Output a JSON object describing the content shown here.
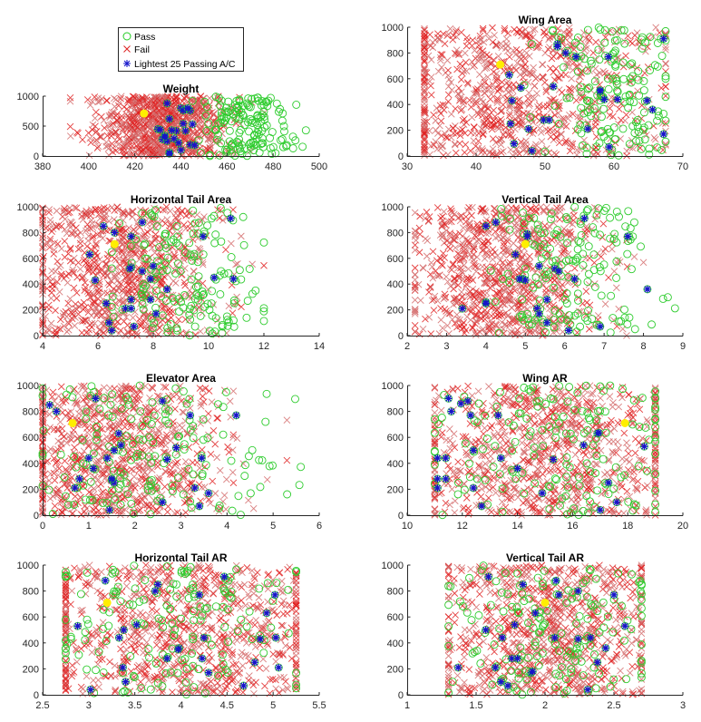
{
  "legend": {
    "entries": [
      {
        "label": "Pass",
        "marker": "circle",
        "color": "#22cc22"
      },
      {
        "label": "Fail",
        "marker": "x",
        "color": "#dd2222"
      },
      {
        "label": "Lightest 25 Passing A/C",
        "marker": "asterisk",
        "color": "#1a1acc"
      }
    ],
    "placement": "above top-left panel"
  },
  "colors": {
    "pass": "#2ecc2e",
    "fail": "#e02020",
    "fail_light": "#d46a6a",
    "star": "#1515c8",
    "highlight": "#ffee00",
    "axis": "#262626"
  },
  "chart_data": [
    {
      "type": "scatter",
      "title": "Weight",
      "xlabel": "",
      "ylabel": "",
      "xlim": [
        380,
        500
      ],
      "ylim": [
        0,
        1000
      ],
      "xticks": [
        "380",
        "400",
        "420",
        "440",
        "460",
        "480",
        "500"
      ],
      "yticks": [
        "0",
        "500",
        "1000"
      ],
      "grid": false,
      "fail_range": {
        "x": [
          392,
          492
        ],
        "center": 432,
        "spread": 14,
        "count": 900
      },
      "pass_range": {
        "x": [
          445,
          498
        ],
        "center": 468,
        "spread": 10,
        "count": 160
      },
      "stars": [
        [
          434,
          880
        ],
        [
          440,
          800
        ],
        [
          442,
          780
        ],
        [
          444,
          760
        ],
        [
          435,
          620
        ],
        [
          441,
          540
        ],
        [
          445,
          530
        ],
        [
          430,
          450
        ],
        [
          431,
          440
        ],
        [
          438,
          420
        ],
        [
          433,
          340
        ],
        [
          432,
          280
        ],
        [
          434,
          250
        ],
        [
          437,
          290
        ],
        [
          439,
          220
        ],
        [
          444,
          190
        ],
        [
          446,
          180
        ],
        [
          440,
          100
        ],
        [
          435,
          60
        ],
        [
          435,
          40
        ],
        [
          441,
          760
        ],
        [
          443,
          800
        ],
        [
          436,
          430
        ],
        [
          442,
          420
        ],
        [
          433,
          320
        ]
      ],
      "highlight": [
        424,
        710
      ]
    },
    {
      "type": "scatter",
      "title": "Wing Area",
      "xlim": [
        30,
        70
      ],
      "ylim": [
        0,
        1000
      ],
      "xticks": [
        "30",
        "40",
        "50",
        "60",
        "70"
      ],
      "yticks": [
        "0",
        "200",
        "400",
        "600",
        "800",
        "1000"
      ],
      "grid": false,
      "fail_range": {
        "x": [
          32.5,
          67.5
        ],
        "center": 46,
        "spread": 10,
        "count": 900
      },
      "pass_range": {
        "x": [
          47,
          67.5
        ],
        "center": 60,
        "spread": 5,
        "count": 160
      },
      "stars": [
        [
          51.8,
          870
        ],
        [
          51.8,
          850
        ],
        [
          53,
          800
        ],
        [
          54.5,
          770
        ],
        [
          59.2,
          770
        ],
        [
          67.2,
          910
        ],
        [
          44.8,
          630
        ],
        [
          46.5,
          530
        ],
        [
          51.2,
          540
        ],
        [
          45.2,
          430
        ],
        [
          58,
          500
        ],
        [
          58.6,
          440
        ],
        [
          60.5,
          440
        ],
        [
          64.8,
          430
        ],
        [
          65.6,
          360
        ],
        [
          45,
          250
        ],
        [
          47.6,
          210
        ],
        [
          49.8,
          280
        ],
        [
          50.6,
          280
        ],
        [
          56.2,
          210
        ],
        [
          67.2,
          170
        ],
        [
          45.5,
          95
        ],
        [
          48.1,
          40
        ],
        [
          59.3,
          70
        ],
        [
          58,
          510
        ]
      ],
      "highlight": [
        43.5,
        710
      ]
    },
    {
      "type": "scatter",
      "title": "Horizontal Tail Area",
      "xlim": [
        4,
        14
      ],
      "ylim": [
        0,
        1000
      ],
      "xticks": [
        "4",
        "6",
        "8",
        "10",
        "12",
        "14"
      ],
      "yticks": [
        "0",
        "200",
        "400",
        "600",
        "800",
        "1000"
      ],
      "grid": false,
      "fail_range": {
        "x": [
          4,
          12
        ],
        "center": 6.8,
        "spread": 1.7,
        "count": 900
      },
      "pass_range": {
        "x": [
          6.5,
          12
        ],
        "center": 9.3,
        "spread": 1.2,
        "count": 160
      },
      "stars": [
        [
          6.2,
          850
        ],
        [
          6.6,
          800
        ],
        [
          7.2,
          770
        ],
        [
          7.6,
          880
        ],
        [
          9.8,
          770
        ],
        [
          10.8,
          910
        ],
        [
          5.7,
          630
        ],
        [
          7.2,
          530
        ],
        [
          7.6,
          500
        ],
        [
          8.0,
          540
        ],
        [
          5.9,
          430
        ],
        [
          7.9,
          440
        ],
        [
          8.5,
          360
        ],
        [
          10.2,
          450
        ],
        [
          10.9,
          440
        ],
        [
          6.3,
          250
        ],
        [
          7.2,
          280
        ],
        [
          7.0,
          210
        ],
        [
          7.2,
          210
        ],
        [
          7.9,
          280
        ],
        [
          8.1,
          170
        ],
        [
          6.4,
          100
        ],
        [
          6.5,
          40
        ],
        [
          7.3,
          70
        ],
        [
          7.15,
          520
        ]
      ],
      "highlight": [
        6.6,
        710
      ]
    },
    {
      "type": "scatter",
      "title": "Vertical Tail Area",
      "xlim": [
        2,
        9
      ],
      "ylim": [
        0,
        1000
      ],
      "xticks": [
        "2",
        "3",
        "4",
        "5",
        "6",
        "7",
        "8",
        "9"
      ],
      "yticks": [
        "0",
        "200",
        "400",
        "600",
        "800",
        "1000"
      ],
      "grid": false,
      "fail_range": {
        "x": [
          2.2,
          8
        ],
        "center": 4.5,
        "spread": 1.2,
        "count": 900
      },
      "pass_range": {
        "x": [
          3.7,
          8.8
        ],
        "center": 6.2,
        "spread": 1.0,
        "count": 160
      },
      "stars": [
        [
          4.0,
          850
        ],
        [
          4.25,
          880
        ],
        [
          5.05,
          790
        ],
        [
          6.5,
          910
        ],
        [
          7.6,
          770
        ],
        [
          4.75,
          630
        ],
        [
          5.35,
          540
        ],
        [
          5.75,
          520
        ],
        [
          5.85,
          500
        ],
        [
          4.9,
          440
        ],
        [
          4.95,
          440
        ],
        [
          5.0,
          430
        ],
        [
          6.25,
          440
        ],
        [
          8.1,
          360
        ],
        [
          4.0,
          260
        ],
        [
          4.0,
          250
        ],
        [
          5.55,
          280
        ],
        [
          3.4,
          210
        ],
        [
          5.3,
          210
        ],
        [
          5.35,
          170
        ],
        [
          5.55,
          100
        ],
        [
          6.1,
          40
        ],
        [
          6.9,
          70
        ],
        [
          5.05,
          770
        ],
        [
          4.85,
          440
        ]
      ],
      "highlight": [
        5.0,
        710
      ]
    },
    {
      "type": "scatter",
      "title": "Elevator Area",
      "xlim": [
        0,
        6
      ],
      "ylim": [
        0,
        1000
      ],
      "xticks": [
        "0",
        "1",
        "2",
        "3",
        "4",
        "5",
        "6"
      ],
      "yticks": [
        "0",
        "200",
        "400",
        "600",
        "800",
        "1000"
      ],
      "grid": false,
      "fail_range": {
        "x": [
          0,
          5.3
        ],
        "center": 1.6,
        "spread": 1.2,
        "count": 900
      },
      "pass_range": {
        "x": [
          0,
          5.6
        ],
        "center": 2.2,
        "spread": 1.5,
        "count": 160
      },
      "stars": [
        [
          0.15,
          850
        ],
        [
          0.3,
          800
        ],
        [
          1.15,
          900
        ],
        [
          2.6,
          880
        ],
        [
          3.2,
          770
        ],
        [
          4.2,
          770
        ],
        [
          1.65,
          630
        ],
        [
          1.7,
          540
        ],
        [
          1.55,
          500
        ],
        [
          2.9,
          520
        ],
        [
          1.0,
          440
        ],
        [
          1.4,
          440
        ],
        [
          2.7,
          430
        ],
        [
          3.45,
          440
        ],
        [
          1.1,
          360
        ],
        [
          0.8,
          280
        ],
        [
          1.5,
          270
        ],
        [
          1.55,
          250
        ],
        [
          0.7,
          210
        ],
        [
          3.3,
          210
        ],
        [
          3.6,
          170
        ],
        [
          2.6,
          100
        ],
        [
          3.4,
          70
        ],
        [
          1.45,
          40
        ],
        [
          1.5,
          280
        ]
      ],
      "highlight": [
        0.65,
        710
      ]
    },
    {
      "type": "scatter",
      "title": "Wing AR",
      "xlim": [
        10,
        20
      ],
      "ylim": [
        0,
        1000
      ],
      "xticks": [
        "10",
        "12",
        "14",
        "16",
        "18",
        "20"
      ],
      "yticks": [
        "0",
        "200",
        "400",
        "600",
        "800",
        "1000"
      ],
      "grid": false,
      "fail_range": {
        "x": [
          11,
          19
        ],
        "center": 15,
        "spread": 2.5,
        "count": 900
      },
      "pass_range": {
        "x": [
          11,
          19
        ],
        "center": 15.5,
        "spread": 2.5,
        "count": 160
      },
      "stars": [
        [
          11.5,
          900
        ],
        [
          11.95,
          860
        ],
        [
          12.2,
          880
        ],
        [
          11.6,
          800
        ],
        [
          12.3,
          770
        ],
        [
          13.3,
          770
        ],
        [
          16.9,
          630
        ],
        [
          16.4,
          540
        ],
        [
          18.6,
          530
        ],
        [
          12.4,
          500
        ],
        [
          11.1,
          440
        ],
        [
          11.4,
          440
        ],
        [
          13.4,
          440
        ],
        [
          15.3,
          430
        ],
        [
          14.0,
          360
        ],
        [
          11.1,
          280
        ],
        [
          11.4,
          280
        ],
        [
          17.3,
          250
        ],
        [
          11.1,
          210
        ],
        [
          12.4,
          210
        ],
        [
          14.9,
          170
        ],
        [
          17.6,
          100
        ],
        [
          12.7,
          70
        ],
        [
          17.0,
          40
        ],
        [
          16.95,
          635
        ]
      ],
      "highlight": [
        17.9,
        710
      ]
    },
    {
      "type": "scatter",
      "title": "Horizontal Tail AR",
      "xlim": [
        2.5,
        5.5
      ],
      "ylim": [
        0,
        1000
      ],
      "xticks": [
        "2.5",
        "3",
        "3.5",
        "4",
        "4.5",
        "5",
        "5.5"
      ],
      "yticks": [
        "0",
        "200",
        "400",
        "600",
        "800",
        "1000"
      ],
      "grid": false,
      "fail_range": {
        "x": [
          2.75,
          5.25
        ],
        "center": 4.0,
        "spread": 0.8,
        "count": 900
      },
      "pass_range": {
        "x": [
          2.75,
          5.25
        ],
        "center": 4.0,
        "spread": 0.8,
        "count": 160
      },
      "stars": [
        [
          3.18,
          880
        ],
        [
          3.75,
          850
        ],
        [
          3.72,
          800
        ],
        [
          4.47,
          910
        ],
        [
          4.2,
          770
        ],
        [
          5.02,
          770
        ],
        [
          4.93,
          630
        ],
        [
          2.88,
          530
        ],
        [
          3.52,
          540
        ],
        [
          3.38,
          500
        ],
        [
          3.33,
          440
        ],
        [
          4.25,
          440
        ],
        [
          4.86,
          430
        ],
        [
          5.03,
          440
        ],
        [
          3.98,
          360
        ],
        [
          3.85,
          280
        ],
        [
          4.23,
          280
        ],
        [
          4.8,
          250
        ],
        [
          3.37,
          210
        ],
        [
          5.06,
          210
        ],
        [
          4.3,
          170
        ],
        [
          3.4,
          100
        ],
        [
          4.68,
          70
        ],
        [
          3.02,
          40
        ],
        [
          3.97,
          350
        ]
      ],
      "highlight": [
        3.2,
        710
      ]
    },
    {
      "type": "scatter",
      "title": "Vertical Tail AR",
      "xlim": [
        1,
        3
      ],
      "ylim": [
        0,
        1000
      ],
      "xticks": [
        "1",
        "1.5",
        "2",
        "2.5",
        "3"
      ],
      "yticks": [
        "0",
        "200",
        "400",
        "600",
        "800",
        "1000"
      ],
      "grid": false,
      "fail_range": {
        "x": [
          1.3,
          2.7
        ],
        "center": 2.0,
        "spread": 0.4,
        "count": 900
      },
      "pass_range": {
        "x": [
          1.3,
          2.7
        ],
        "center": 2.0,
        "spread": 0.4,
        "count": 160
      },
      "stars": [
        [
          1.59,
          910
        ],
        [
          1.84,
          850
        ],
        [
          2.08,
          880
        ],
        [
          2.1,
          770
        ],
        [
          2.24,
          800
        ],
        [
          2.5,
          770
        ],
        [
          1.93,
          630
        ],
        [
          1.57,
          500
        ],
        [
          1.78,
          540
        ],
        [
          2.58,
          530
        ],
        [
          1.69,
          440
        ],
        [
          2.07,
          440
        ],
        [
          2.24,
          430
        ],
        [
          2.33,
          440
        ],
        [
          2.44,
          360
        ],
        [
          1.76,
          280
        ],
        [
          1.8,
          280
        ],
        [
          2.38,
          250
        ],
        [
          1.37,
          210
        ],
        [
          1.64,
          210
        ],
        [
          1.9,
          170
        ],
        [
          1.68,
          100
        ],
        [
          1.73,
          70
        ],
        [
          2.31,
          40
        ],
        [
          1.91,
          180
        ]
      ],
      "highlight": [
        2.0,
        710
      ]
    }
  ]
}
